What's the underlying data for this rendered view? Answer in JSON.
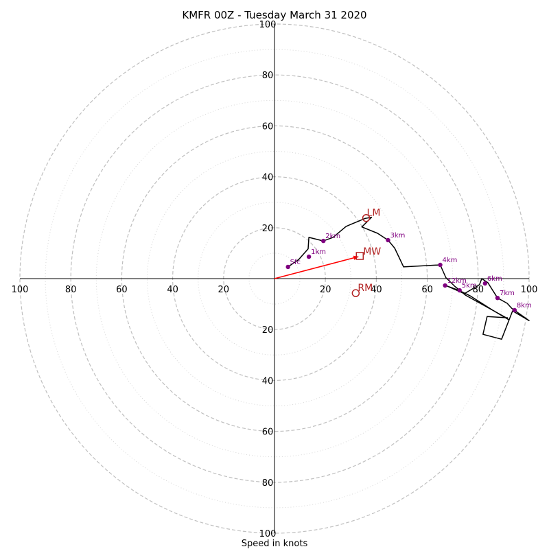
{
  "chart_data": {
    "type": "hodograph",
    "title": "KMFR 00Z - Tuesday March 31 2020",
    "xlabel": "Speed in knots",
    "range": [
      -100,
      100
    ],
    "rings_major": [
      20,
      40,
      60,
      80,
      100
    ],
    "rings_minor": [
      10,
      30,
      50,
      70,
      90
    ],
    "x_tick_labels": [
      "100",
      "80",
      "60",
      "40",
      "20",
      "20",
      "40",
      "60",
      "80",
      "100"
    ],
    "x_tick_values": [
      -100,
      -80,
      -60,
      -40,
      -20,
      20,
      40,
      60,
      80,
      100
    ],
    "y_tick_labels": [
      "100",
      "80",
      "60",
      "40",
      "20",
      "20",
      "40",
      "60",
      "80",
      "100"
    ],
    "y_tick_values": [
      100,
      80,
      60,
      40,
      20,
      -20,
      -40,
      -60,
      -80,
      -100
    ],
    "hodograph_trace": [
      [
        5.3,
        4.6
      ],
      [
        9.5,
        7.5
      ],
      [
        13.2,
        11.7
      ],
      [
        13.5,
        16.2
      ],
      [
        19.2,
        14.8
      ],
      [
        23,
        16.2
      ],
      [
        28.1,
        20.5
      ],
      [
        35.5,
        23.6
      ],
      [
        38.1,
        24.1
      ],
      [
        34.3,
        20.3
      ],
      [
        40.5,
        17.8
      ],
      [
        44.6,
        15.1
      ],
      [
        47.2,
        12
      ],
      [
        50.7,
        4.6
      ],
      [
        65.1,
        5.4
      ],
      [
        67.3,
        0.4
      ],
      [
        70.9,
        -3.1
      ],
      [
        75,
        -6.5
      ],
      [
        90.5,
        -15.1
      ],
      [
        92.1,
        -16.2
      ],
      [
        86,
        -12.6
      ],
      [
        76.9,
        -6.8
      ],
      [
        72.4,
        -4.6
      ],
      [
        67.8,
        -2.9
      ],
      [
        74.6,
        -5.9
      ],
      [
        80.5,
        -2.4
      ],
      [
        81.4,
        0
      ],
      [
        83.8,
        -1.6
      ],
      [
        87.6,
        -7.6
      ],
      [
        91.4,
        -9.7
      ],
      [
        93.2,
        -11.7
      ],
      [
        100,
        -16.5
      ],
      [
        93.5,
        -12.7
      ],
      [
        89.2,
        -23.8
      ],
      [
        81.9,
        -21.9
      ],
      [
        83.5,
        -14.9
      ],
      [
        91.7,
        -15.4
      ]
    ],
    "height_markers": [
      {
        "label": "Sfc",
        "u": 5.3,
        "v": 4.6
      },
      {
        "label": "1km",
        "u": 13.5,
        "v": 8.6
      },
      {
        "label": "2km",
        "u": 19.2,
        "v": 14.8
      },
      {
        "label": "3km",
        "u": 44.6,
        "v": 15.1
      },
      {
        "label": "4km",
        "u": 65.1,
        "v": 5.4
      },
      {
        "label": "5km",
        "u": 72.7,
        "v": -4.6
      },
      {
        "label": "6km",
        "u": 82.7,
        "v": -1.9
      },
      {
        "label": "7km",
        "u": 87.6,
        "v": -7.6
      },
      {
        "label": "8km",
        "u": 94.3,
        "v": -12.4
      },
      {
        "label": "12km",
        "u": 67,
        "v": -2.7
      }
    ],
    "storm_motion": {
      "LM": {
        "label": "LM",
        "u": 36,
        "v": 23.8
      },
      "MW": {
        "label": "MW",
        "u": 33.5,
        "v": 8.9
      },
      "RM": {
        "label": "RM",
        "u": 31.9,
        "v": -5.7
      }
    },
    "mean_wind_vector": {
      "from": [
        0,
        0
      ],
      "to": [
        33.5,
        8.9
      ]
    },
    "colors": {
      "trace": "#000000",
      "markers": "#800080",
      "motion": "#b22222",
      "vector": "#ff0000",
      "grid_major": "#bfbfbf",
      "grid_minor": "#d6d6d6"
    }
  }
}
